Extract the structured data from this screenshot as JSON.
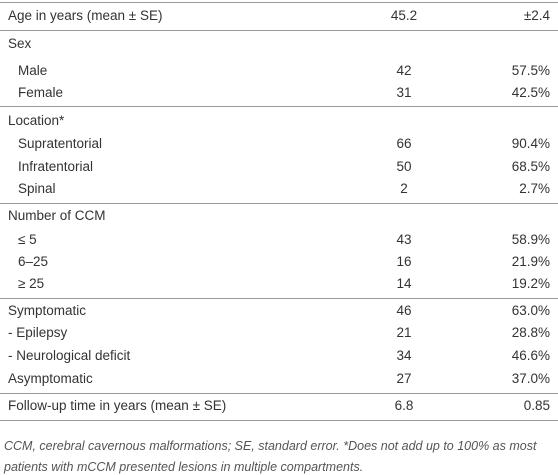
{
  "table": {
    "rows": [
      [
        "Age in years (mean ± SE)",
        "45.2",
        "±2.4"
      ],
      [
        "Sex"
      ],
      [
        "Male",
        "42",
        "57.5%"
      ],
      [
        "Female",
        "31",
        "42.5%"
      ],
      [
        "Location*"
      ],
      [
        "Supratentorial",
        "66",
        "90.4%"
      ],
      [
        "Infratentorial",
        "50",
        "68.5%"
      ],
      [
        "Spinal",
        "2",
        "2.7%"
      ],
      [
        "Number of CCM"
      ],
      [
        "≤ 5",
        "43",
        "58.9%"
      ],
      [
        "6–25",
        "16",
        "21.9%"
      ],
      [
        "≥ 25",
        "14",
        "19.2%"
      ],
      [
        "Symptomatic",
        "46",
        "63.0%"
      ],
      [
        "- Epilepsy",
        "21",
        "28.8%"
      ],
      [
        "- Neurological deficit",
        "34",
        "46.6%"
      ],
      [
        "Asymptomatic",
        "27",
        "37.0%"
      ],
      [
        "Follow-up time in years (mean ± SE)",
        "6.8",
        "0.85"
      ]
    ]
  },
  "footnote": "CCM, cerebral cavernous malformations; SE, standard error. *Does not add up to 100% as most patients with mCCM presented lesions in multiple compartments."
}
